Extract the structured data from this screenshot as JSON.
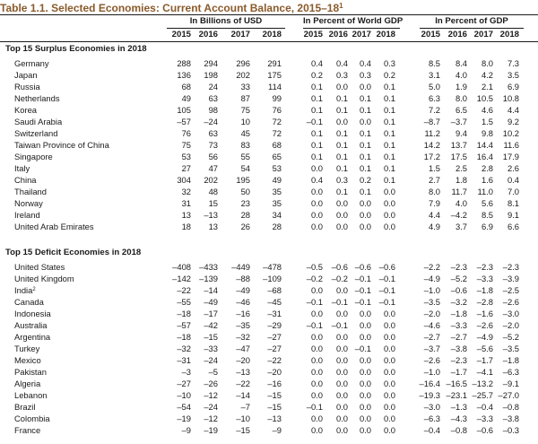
{
  "title": {
    "text": "Table 1.1. Selected Economies: Current Account Balance, 2015–18",
    "note_mark": "1"
  },
  "groups": [
    "In Billions of USD",
    "In Percent of World GDP",
    "In Percent of GDP"
  ],
  "years": [
    "2015",
    "2016",
    "2017",
    "2018"
  ],
  "sections": [
    {
      "heading": "Top 15 Surplus Economies in 2018",
      "rows": [
        {
          "name": "Germany",
          "note": "",
          "usd": [
            "288",
            "294",
            "296",
            "291"
          ],
          "world": [
            "0.4",
            "0.4",
            "0.4",
            "0.3"
          ],
          "gdp": [
            "8.5",
            "8.4",
            "8.0",
            "7.3"
          ]
        },
        {
          "name": "Japan",
          "note": "",
          "usd": [
            "136",
            "198",
            "202",
            "175"
          ],
          "world": [
            "0.2",
            "0.3",
            "0.3",
            "0.2"
          ],
          "gdp": [
            "3.1",
            "4.0",
            "4.2",
            "3.5"
          ]
        },
        {
          "name": "Russia",
          "note": "",
          "usd": [
            "68",
            "24",
            "33",
            "114"
          ],
          "world": [
            "0.1",
            "0.0",
            "0.0",
            "0.1"
          ],
          "gdp": [
            "5.0",
            "1.9",
            "2.1",
            "6.9"
          ]
        },
        {
          "name": "Netherlands",
          "note": "",
          "usd": [
            "49",
            "63",
            "87",
            "99"
          ],
          "world": [
            "0.1",
            "0.1",
            "0.1",
            "0.1"
          ],
          "gdp": [
            "6.3",
            "8.0",
            "10.5",
            "10.8"
          ]
        },
        {
          "name": "Korea",
          "note": "",
          "usd": [
            "105",
            "98",
            "75",
            "76"
          ],
          "world": [
            "0.1",
            "0.1",
            "0.1",
            "0.1"
          ],
          "gdp": [
            "7.2",
            "6.5",
            "4.6",
            "4.4"
          ]
        },
        {
          "name": "Saudi Arabia",
          "note": "",
          "usd": [
            "–57",
            "–24",
            "10",
            "72"
          ],
          "world": [
            "–0.1",
            "0.0",
            "0.0",
            "0.1"
          ],
          "gdp": [
            "–8.7",
            "–3.7",
            "1.5",
            "9.2"
          ]
        },
        {
          "name": "Switzerland",
          "note": "",
          "usd": [
            "76",
            "63",
            "45",
            "72"
          ],
          "world": [
            "0.1",
            "0.1",
            "0.1",
            "0.1"
          ],
          "gdp": [
            "11.2",
            "9.4",
            "9.8",
            "10.2"
          ]
        },
        {
          "name": "Taiwan Province of China",
          "note": "",
          "usd": [
            "75",
            "73",
            "83",
            "68"
          ],
          "world": [
            "0.1",
            "0.1",
            "0.1",
            "0.1"
          ],
          "gdp": [
            "14.2",
            "13.7",
            "14.4",
            "11.6"
          ]
        },
        {
          "name": "Singapore",
          "note": "",
          "usd": [
            "53",
            "56",
            "55",
            "65"
          ],
          "world": [
            "0.1",
            "0.1",
            "0.1",
            "0.1"
          ],
          "gdp": [
            "17.2",
            "17.5",
            "16.4",
            "17.9"
          ]
        },
        {
          "name": "Italy",
          "note": "",
          "usd": [
            "27",
            "47",
            "54",
            "53"
          ],
          "world": [
            "0.0",
            "0.1",
            "0.1",
            "0.1"
          ],
          "gdp": [
            "1.5",
            "2.5",
            "2.8",
            "2.6"
          ]
        },
        {
          "name": "China",
          "note": "",
          "usd": [
            "304",
            "202",
            "195",
            "49"
          ],
          "world": [
            "0.4",
            "0.3",
            "0.2",
            "0.1"
          ],
          "gdp": [
            "2.7",
            "1.8",
            "1.6",
            "0.4"
          ]
        },
        {
          "name": "Thailand",
          "note": "",
          "usd": [
            "32",
            "48",
            "50",
            "35"
          ],
          "world": [
            "0.0",
            "0.1",
            "0.1",
            "0.0"
          ],
          "gdp": [
            "8.0",
            "11.7",
            "11.0",
            "7.0"
          ]
        },
        {
          "name": "Norway",
          "note": "",
          "usd": [
            "31",
            "15",
            "23",
            "35"
          ],
          "world": [
            "0.0",
            "0.0",
            "0.0",
            "0.0"
          ],
          "gdp": [
            "7.9",
            "4.0",
            "5.6",
            "8.1"
          ]
        },
        {
          "name": "Ireland",
          "note": "",
          "usd": [
            "13",
            "–13",
            "28",
            "34"
          ],
          "world": [
            "0.0",
            "0.0",
            "0.0",
            "0.0"
          ],
          "gdp": [
            "4.4",
            "–4.2",
            "8.5",
            "9.1"
          ]
        },
        {
          "name": "United Arab Emirates",
          "note": "",
          "usd": [
            "18",
            "13",
            "26",
            "28"
          ],
          "world": [
            "0.0",
            "0.0",
            "0.0",
            "0.0"
          ],
          "gdp": [
            "4.9",
            "3.7",
            "6.9",
            "6.6"
          ]
        }
      ]
    },
    {
      "heading": "Top 15 Deficit Economies in 2018",
      "rows": [
        {
          "name": "United States",
          "note": "",
          "usd": [
            "–408",
            "–433",
            "–449",
            "–478"
          ],
          "world": [
            "–0.5",
            "–0.6",
            "–0.6",
            "–0.6"
          ],
          "gdp": [
            "–2.2",
            "–2.3",
            "–2.3",
            "–2.3"
          ]
        },
        {
          "name": "United Kingdom",
          "note": "",
          "usd": [
            "–142",
            "–139",
            "–88",
            "–109"
          ],
          "world": [
            "–0.2",
            "–0.2",
            "–0.1",
            "–0.1"
          ],
          "gdp": [
            "–4.9",
            "–5.2",
            "–3.3",
            "–3.9"
          ]
        },
        {
          "name": "India",
          "note": "2",
          "usd": [
            "–22",
            "–14",
            "–49",
            "–68"
          ],
          "world": [
            "0.0",
            "0.0",
            "–0.1",
            "–0.1"
          ],
          "gdp": [
            "–1.0",
            "–0.6",
            "–1.8",
            "–2.5"
          ]
        },
        {
          "name": "Canada",
          "note": "",
          "usd": [
            "–55",
            "–49",
            "–46",
            "–45"
          ],
          "world": [
            "–0.1",
            "–0.1",
            "–0.1",
            "–0.1"
          ],
          "gdp": [
            "–3.5",
            "–3.2",
            "–2.8",
            "–2.6"
          ]
        },
        {
          "name": "Indonesia",
          "note": "",
          "usd": [
            "–18",
            "–17",
            "–16",
            "–31"
          ],
          "world": [
            "0.0",
            "0.0",
            "0.0",
            "0.0"
          ],
          "gdp": [
            "–2.0",
            "–1.8",
            "–1.6",
            "–3.0"
          ]
        },
        {
          "name": "Australia",
          "note": "",
          "usd": [
            "–57",
            "–42",
            "–35",
            "–29"
          ],
          "world": [
            "–0.1",
            "–0.1",
            "0.0",
            "0.0"
          ],
          "gdp": [
            "–4.6",
            "–3.3",
            "–2.6",
            "–2.0"
          ]
        },
        {
          "name": "Argentina",
          "note": "",
          "usd": [
            "–18",
            "–15",
            "–32",
            "–27"
          ],
          "world": [
            "0.0",
            "0.0",
            "0.0",
            "0.0"
          ],
          "gdp": [
            "–2.7",
            "–2.7",
            "–4.9",
            "–5.2"
          ]
        },
        {
          "name": "Turkey",
          "note": "",
          "usd": [
            "–32",
            "–33",
            "–47",
            "–27"
          ],
          "world": [
            "0.0",
            "0.0",
            "–0.1",
            "0.0"
          ],
          "gdp": [
            "–3.7",
            "–3.8",
            "–5.6",
            "–3.5"
          ]
        },
        {
          "name": "Mexico",
          "note": "",
          "usd": [
            "–31",
            "–24",
            "–20",
            "–22"
          ],
          "world": [
            "0.0",
            "0.0",
            "0.0",
            "0.0"
          ],
          "gdp": [
            "–2.6",
            "–2.3",
            "–1.7",
            "–1.8"
          ]
        },
        {
          "name": "Pakistan",
          "note": "",
          "usd": [
            "–3",
            "–5",
            "–13",
            "–20"
          ],
          "world": [
            "0.0",
            "0.0",
            "0.0",
            "0.0"
          ],
          "gdp": [
            "–1.0",
            "–1.7",
            "–4.1",
            "–6.3"
          ]
        },
        {
          "name": "Algeria",
          "note": "",
          "usd": [
            "–27",
            "–26",
            "–22",
            "–16"
          ],
          "world": [
            "0.0",
            "0.0",
            "0.0",
            "0.0"
          ],
          "gdp": [
            "–16.4",
            "–16.5",
            "–13.2",
            "–9.1"
          ]
        },
        {
          "name": "Lebanon",
          "note": "",
          "usd": [
            "–10",
            "–12",
            "–14",
            "–15"
          ],
          "world": [
            "0.0",
            "0.0",
            "0.0",
            "0.0"
          ],
          "gdp": [
            "–19.3",
            "–23.1",
            "–25.7",
            "–27.0"
          ]
        },
        {
          "name": "Brazil",
          "note": "",
          "usd": [
            "–54",
            "–24",
            "–7",
            "–15"
          ],
          "world": [
            "–0.1",
            "0.0",
            "0.0",
            "0.0"
          ],
          "gdp": [
            "–3.0",
            "–1.3",
            "–0.4",
            "–0.8"
          ]
        },
        {
          "name": "Colombia",
          "note": "",
          "usd": [
            "–19",
            "–12",
            "–10",
            "–13"
          ],
          "world": [
            "0.0",
            "0.0",
            "0.0",
            "0.0"
          ],
          "gdp": [
            "–6.3",
            "–4.3",
            "–3.3",
            "–3.8"
          ]
        },
        {
          "name": "France",
          "note": "",
          "usd": [
            "–9",
            "–19",
            "–15",
            "–9"
          ],
          "world": [
            "0.0",
            "0.0",
            "0.0",
            "0.0"
          ],
          "gdp": [
            "–0.4",
            "–0.8",
            "–0.6",
            "–0.3"
          ]
        }
      ]
    }
  ],
  "colors": {
    "title": "#8a5a2b",
    "text": "#1a1a1a",
    "rule": "#1a1a1a"
  }
}
